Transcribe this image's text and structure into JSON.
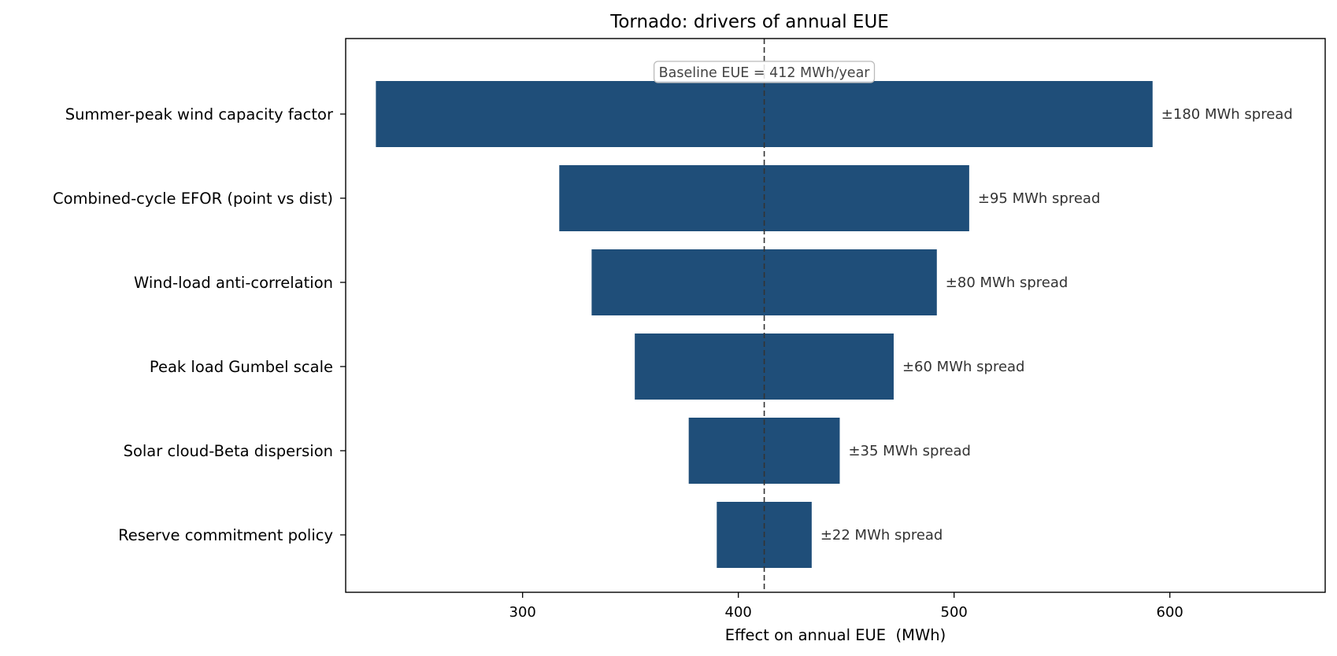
{
  "chart_data": {
    "type": "bar",
    "orientation": "horizontal",
    "variant": "tornado",
    "title": "Tornado: drivers of annual EUE",
    "xlabel": "Effect on annual EUE  (MWh)",
    "ylabel": "",
    "xlim": [
      218,
      672
    ],
    "xticks": [
      300,
      400,
      500,
      600
    ],
    "grid": false,
    "baseline": {
      "value": 412,
      "label": "Baseline EUE = 412 MWh/year"
    },
    "categories": [
      "Summer-peak wind capacity factor",
      "Combined-cycle EFOR (point vs dist)",
      "Wind-load anti-correlation",
      "Peak load Gumbel scale",
      "Solar cloud-Beta dispersion",
      "Reserve commitment policy"
    ],
    "low": [
      232,
      317,
      332,
      352,
      377,
      390
    ],
    "high": [
      592,
      507,
      492,
      472,
      447,
      434
    ],
    "bar_labels": [
      "±180 MWh spread",
      "±95 MWh spread",
      "±80 MWh spread",
      "±60 MWh spread",
      "±35 MWh spread",
      "±22 MWh spread"
    ],
    "colors": {
      "bar": "#1f4e79",
      "baseline": "#333333",
      "axes": "#000000"
    }
  }
}
